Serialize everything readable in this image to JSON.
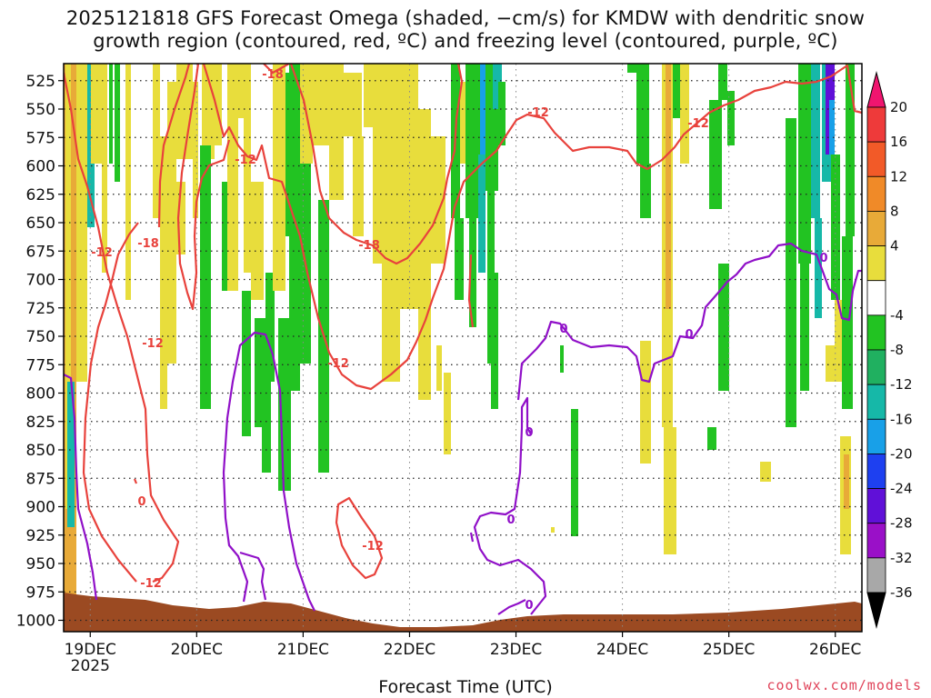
{
  "chart_data": {
    "type": "heatmap",
    "title_line1": "2025121818 GFS Forecast Omega (shaded, −cm/s) for KMDW with dendritic snow",
    "title_line2": "growth region (contoured, red, ºC) and freezing level (contoured, purple, ºC)",
    "xlabel": "Forecast Time (UTC)",
    "credit": "coolwx.com/models",
    "x_ticks": [
      "19DEC",
      "20DEC",
      "21DEC",
      "22DEC",
      "23DEC",
      "24DEC",
      "25DEC",
      "26DEC"
    ],
    "x_tick_sub": "2025",
    "x_range_days": [
      18.75,
      26.25
    ],
    "y_ticks": [
      525,
      550,
      575,
      600,
      625,
      650,
      675,
      700,
      725,
      750,
      775,
      800,
      825,
      850,
      875,
      900,
      925,
      950,
      975,
      1000
    ],
    "y_label_text": [
      "525",
      "550",
      "575",
      "600",
      "625",
      "650",
      "675",
      "700",
      "725",
      "750",
      "775",
      "800",
      "825",
      "850",
      "875",
      "900",
      "925",
      "950",
      "975",
      "1000"
    ],
    "y_range_hPa": [
      510,
      1010
    ],
    "colorbar": {
      "labels": [
        "20",
        "16",
        "12",
        "8",
        "4",
        "-4",
        "-8",
        "-12",
        "-16",
        "-20",
        "-24",
        "-28",
        "-32",
        "-36"
      ],
      "colors": [
        "#f0156f",
        "#ee3a3a",
        "#f25a28",
        "#f08a28",
        "#e8aa38",
        "#e8dd3c",
        "#ffffff",
        "#22c322",
        "#20b060",
        "#16b8a8",
        "#18a0e8",
        "#1e40f0",
        "#6010d8",
        "#9a10c8",
        "#a8a8a8",
        "#000000"
      ]
    },
    "contour_labels": [
      {
        "text": "-18",
        "color": "#e8423c"
      },
      {
        "text": "-12",
        "color": "#e8423c"
      },
      {
        "text": "-12",
        "color": "#e8423c"
      },
      {
        "text": "-12",
        "color": "#e8423c"
      },
      {
        "text": "-18",
        "color": "#e8423c"
      },
      {
        "text": "-12",
        "color": "#e8423c"
      },
      {
        "text": "-12",
        "color": "#e8423c"
      },
      {
        "text": "-18",
        "color": "#e8423c"
      },
      {
        "text": "-12",
        "color": "#e8423c"
      },
      {
        "text": "-12",
        "color": "#e8423c"
      },
      {
        "text": "-12",
        "color": "#e8423c"
      },
      {
        "text": "0",
        "color": "#e8423c"
      },
      {
        "text": "0",
        "color": "#9010c8"
      },
      {
        "text": "0",
        "color": "#9010c8"
      },
      {
        "text": "0",
        "color": "#9010c8"
      },
      {
        "text": "0",
        "color": "#9010c8"
      },
      {
        "text": "0",
        "color": "#9010c8"
      },
      {
        "text": "0",
        "color": "#9010c8"
      }
    ],
    "red_contour_C": -12,
    "red_contour_C2": -18,
    "purple_contour_C": 0,
    "colors": {
      "red_contour": "#e8423c",
      "purple_contour": "#9010c8",
      "terrain": "#9b4a22",
      "shade_yellow": "#e8dd3c",
      "shade_gold": "#e8aa38",
      "shade_green": "#22c322",
      "shade_teal": "#20b060",
      "shade_cyan": "#16b8a8",
      "shade_blue": "#18a0e8",
      "shade_purple": "#6010d8"
    }
  }
}
